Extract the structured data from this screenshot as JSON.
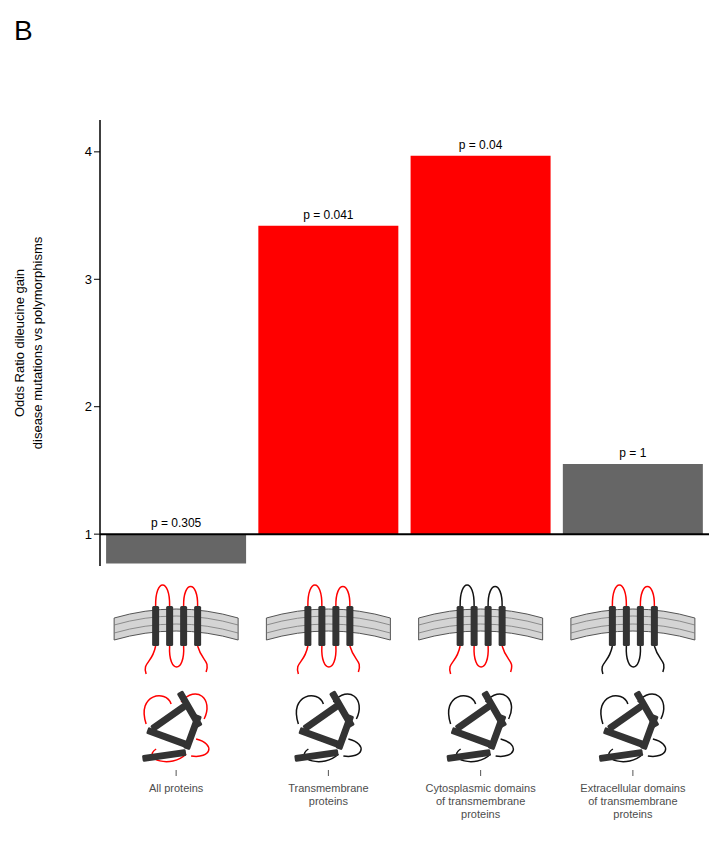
{
  "chart_data": {
    "type": "bar",
    "panel_label": "B",
    "y_label": [
      "Odds Ratio dileucine gain",
      "disease mutations vs polymorphisms"
    ],
    "categories": [
      "All proteins",
      "Transmembrane proteins",
      "Cytosplasmic domains of transmembrane proteins",
      "Extracellular domains of transmembrane proteins"
    ],
    "values": [
      0.77,
      3.42,
      3.97,
      1.55
    ],
    "annotations": [
      "p = 0.305",
      "p = 0.041",
      "p = 0.04",
      "p = 1"
    ],
    "colors": [
      "#666666",
      "#ff0000",
      "#ff0000",
      "#666666"
    ],
    "ylim": [
      0.75,
      4.25
    ],
    "yticks": [
      1,
      2,
      3,
      4
    ]
  }
}
